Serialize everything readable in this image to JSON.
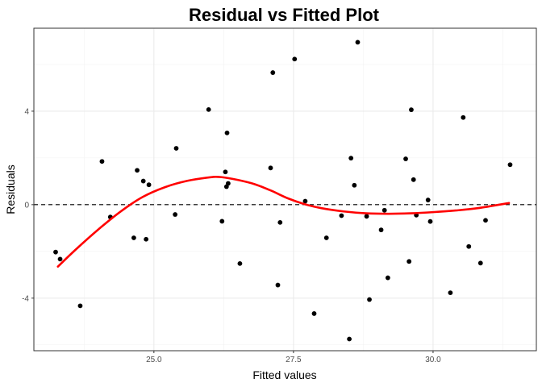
{
  "chart_data": {
    "type": "scatter",
    "title": "Residual vs Fitted Plot",
    "xlabel": "Fitted values",
    "ylabel": "Residuals",
    "xlim": [
      22.85,
      31.85
    ],
    "ylim": [
      -6.25,
      7.55
    ],
    "x_ticks": [
      25.0,
      27.5,
      30.0
    ],
    "x_tick_labels": [
      "25.0",
      "27.5",
      "30.0"
    ],
    "y_ticks": [
      -4,
      0,
      4
    ],
    "y_tick_labels": [
      "-4",
      "0",
      "4"
    ],
    "grid": true,
    "reference_line": {
      "y": 0,
      "style": "dashed",
      "color": "#000000"
    },
    "points_color": "#000000",
    "smooth_color": "#ff0000",
    "series": [
      {
        "type": "scatter",
        "points": [
          {
            "x": 23.24,
            "y": -2.03
          },
          {
            "x": 23.32,
            "y": -2.33
          },
          {
            "x": 23.68,
            "y": -4.33
          },
          {
            "x": 24.07,
            "y": 1.85
          },
          {
            "x": 24.22,
            "y": -0.53
          },
          {
            "x": 24.64,
            "y": -1.42
          },
          {
            "x": 24.7,
            "y": 1.47
          },
          {
            "x": 24.81,
            "y": 1.01
          },
          {
            "x": 24.86,
            "y": -1.48
          },
          {
            "x": 24.91,
            "y": 0.85
          },
          {
            "x": 25.38,
            "y": -0.42
          },
          {
            "x": 25.4,
            "y": 2.41
          },
          {
            "x": 25.98,
            "y": 4.07
          },
          {
            "x": 26.22,
            "y": -0.71
          },
          {
            "x": 26.28,
            "y": 1.4
          },
          {
            "x": 26.3,
            "y": 0.77
          },
          {
            "x": 26.31,
            "y": 3.07
          },
          {
            "x": 26.33,
            "y": 0.91
          },
          {
            "x": 26.54,
            "y": -2.52
          },
          {
            "x": 27.09,
            "y": 1.57
          },
          {
            "x": 27.13,
            "y": 5.65
          },
          {
            "x": 27.22,
            "y": -3.44
          },
          {
            "x": 27.26,
            "y": -0.76
          },
          {
            "x": 27.52,
            "y": 6.23
          },
          {
            "x": 27.71,
            "y": 0.15
          },
          {
            "x": 27.87,
            "y": -4.66
          },
          {
            "x": 28.09,
            "y": -1.42
          },
          {
            "x": 28.36,
            "y": -0.47
          },
          {
            "x": 28.5,
            "y": -5.75
          },
          {
            "x": 28.53,
            "y": 1.99
          },
          {
            "x": 28.59,
            "y": 0.83
          },
          {
            "x": 28.65,
            "y": 6.95
          },
          {
            "x": 28.81,
            "y": -0.5
          },
          {
            "x": 28.86,
            "y": -4.06
          },
          {
            "x": 29.07,
            "y": -1.08
          },
          {
            "x": 29.13,
            "y": -0.24
          },
          {
            "x": 29.19,
            "y": -3.13
          },
          {
            "x": 29.51,
            "y": 1.96
          },
          {
            "x": 29.57,
            "y": -2.43
          },
          {
            "x": 29.61,
            "y": 4.06
          },
          {
            "x": 29.65,
            "y": 1.07
          },
          {
            "x": 29.7,
            "y": -0.45
          },
          {
            "x": 29.91,
            "y": 0.2
          },
          {
            "x": 29.95,
            "y": -0.72
          },
          {
            "x": 30.31,
            "y": -3.77
          },
          {
            "x": 30.54,
            "y": 3.73
          },
          {
            "x": 30.64,
            "y": -1.79
          },
          {
            "x": 30.85,
            "y": -2.5
          },
          {
            "x": 30.94,
            "y": -0.67
          },
          {
            "x": 31.38,
            "y": 1.71
          }
        ]
      },
      {
        "type": "line",
        "points": [
          {
            "x": 23.28,
            "y": -2.65
          },
          {
            "x": 23.6,
            "y": -1.92
          },
          {
            "x": 24.0,
            "y": -1.07
          },
          {
            "x": 24.4,
            "y": -0.3
          },
          {
            "x": 24.8,
            "y": 0.33
          },
          {
            "x": 25.2,
            "y": 0.75
          },
          {
            "x": 25.6,
            "y": 1.02
          },
          {
            "x": 26.0,
            "y": 1.17
          },
          {
            "x": 26.2,
            "y": 1.18
          },
          {
            "x": 26.5,
            "y": 1.06
          },
          {
            "x": 26.8,
            "y": 0.88
          },
          {
            "x": 27.1,
            "y": 0.6
          },
          {
            "x": 27.4,
            "y": 0.27
          },
          {
            "x": 27.7,
            "y": 0.02
          },
          {
            "x": 28.0,
            "y": -0.15
          },
          {
            "x": 28.4,
            "y": -0.29
          },
          {
            "x": 28.8,
            "y": -0.37
          },
          {
            "x": 29.2,
            "y": -0.39
          },
          {
            "x": 29.6,
            "y": -0.37
          },
          {
            "x": 30.0,
            "y": -0.32
          },
          {
            "x": 30.4,
            "y": -0.25
          },
          {
            "x": 30.8,
            "y": -0.15
          },
          {
            "x": 31.36,
            "y": 0.07
          }
        ]
      }
    ]
  }
}
